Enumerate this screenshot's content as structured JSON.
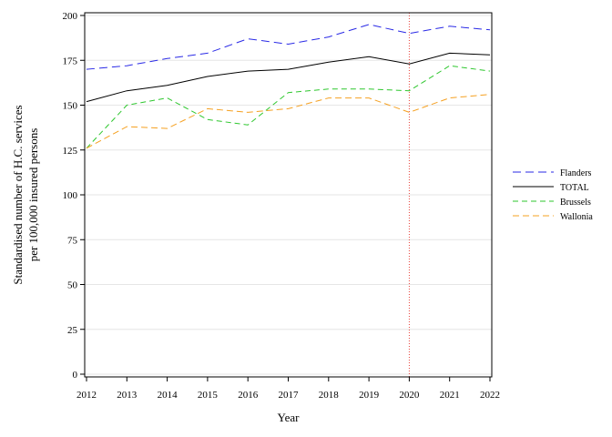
{
  "chart_data": {
    "type": "line",
    "title": "",
    "xlabel": "Year",
    "ylabel_line1": "Standardised number of H.C. services",
    "ylabel_line2": "per 100,000 insured persons",
    "x": [
      2012,
      2013,
      2014,
      2015,
      2016,
      2017,
      2018,
      2019,
      2020,
      2021,
      2022
    ],
    "ylim": [
      0,
      200
    ],
    "yticks": [
      0,
      25,
      50,
      75,
      100,
      125,
      150,
      175,
      200
    ],
    "grid": true,
    "legend_position": "right",
    "reference_line": {
      "x": 2020,
      "color": "#e8413a",
      "style": "dotted"
    },
    "series": [
      {
        "name": "Flanders",
        "color": "#2a2ae6",
        "dash": "9,5",
        "values": [
          170,
          172,
          176,
          179,
          187,
          184,
          188,
          195,
          190,
          194,
          192
        ]
      },
      {
        "name": "TOTAL",
        "color": "#000000",
        "dash": "",
        "values": [
          152,
          158,
          161,
          166,
          169,
          170,
          174,
          177,
          173,
          179,
          178
        ]
      },
      {
        "name": "Brussels",
        "color": "#2ec72e",
        "dash": "6,4",
        "values": [
          126,
          150,
          154,
          142,
          139,
          157,
          159,
          159,
          158,
          172,
          169
        ]
      },
      {
        "name": "Wallonia",
        "color": "#f5a020",
        "dash": "7,4",
        "values": [
          126,
          138,
          137,
          148,
          146,
          148,
          154,
          154,
          146,
          154,
          156
        ]
      }
    ]
  }
}
